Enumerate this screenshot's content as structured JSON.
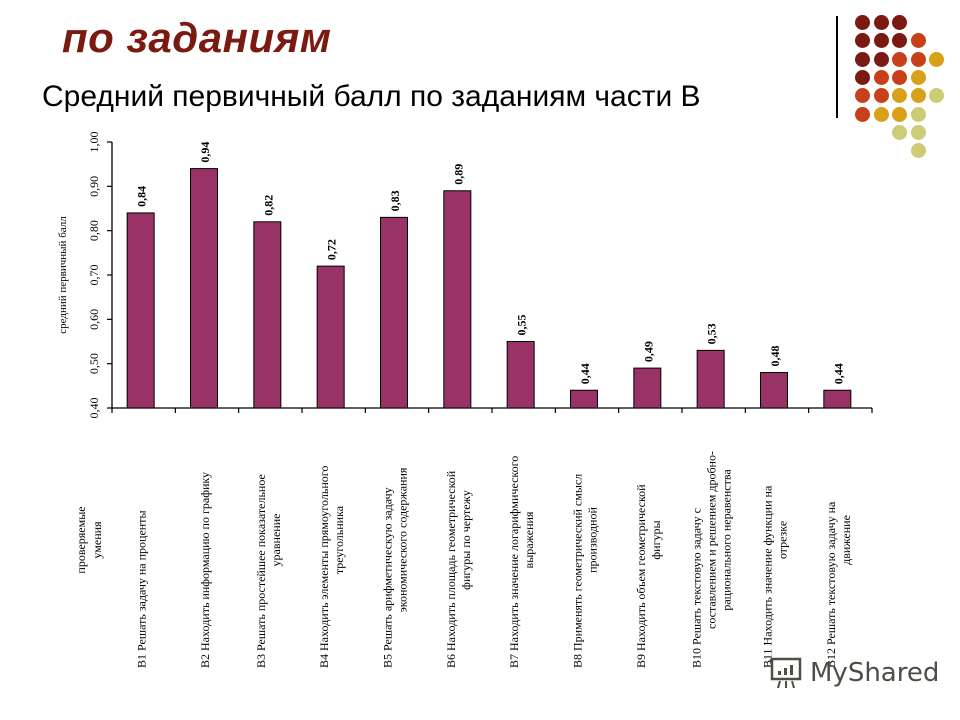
{
  "slide": {
    "title": "по заданиям",
    "subtitle": "Средний первичный балл по заданиям части В"
  },
  "decoration": {
    "dot_colors": [
      "#7b1a12",
      "#c8401a",
      "#d9a01a",
      "#cccc77"
    ],
    "dots": [
      {
        "row": 0,
        "col": 0,
        "c": 0
      },
      {
        "row": 0,
        "col": 1,
        "c": 0
      },
      {
        "row": 0,
        "col": 2,
        "c": 0
      },
      {
        "row": 1,
        "col": 0,
        "c": 0
      },
      {
        "row": 1,
        "col": 1,
        "c": 0
      },
      {
        "row": 1,
        "col": 2,
        "c": 0
      },
      {
        "row": 1,
        "col": 3,
        "c": 1
      },
      {
        "row": 2,
        "col": 0,
        "c": 0
      },
      {
        "row": 2,
        "col": 1,
        "c": 0
      },
      {
        "row": 2,
        "col": 2,
        "c": 1
      },
      {
        "row": 2,
        "col": 3,
        "c": 1
      },
      {
        "row": 2,
        "col": 4,
        "c": 2
      },
      {
        "row": 3,
        "col": 0,
        "c": 0
      },
      {
        "row": 3,
        "col": 1,
        "c": 1
      },
      {
        "row": 3,
        "col": 2,
        "c": 1
      },
      {
        "row": 3,
        "col": 3,
        "c": 2
      },
      {
        "row": 4,
        "col": 0,
        "c": 1
      },
      {
        "row": 4,
        "col": 1,
        "c": 1
      },
      {
        "row": 4,
        "col": 2,
        "c": 2
      },
      {
        "row": 4,
        "col": 3,
        "c": 2
      },
      {
        "row": 4,
        "col": 4,
        "c": 3
      },
      {
        "row": 5,
        "col": 0,
        "c": 1
      },
      {
        "row": 5,
        "col": 1,
        "c": 2
      },
      {
        "row": 5,
        "col": 2,
        "c": 2
      },
      {
        "row": 5,
        "col": 3,
        "c": 3
      },
      {
        "row": 6,
        "col": 2,
        "c": 3
      },
      {
        "row": 6,
        "col": 3,
        "c": 3
      },
      {
        "row": 7,
        "col": 3,
        "c": 3
      }
    ]
  },
  "watermark": {
    "text": "MyShared"
  },
  "chart_data": {
    "type": "bar",
    "title": "Средний первичный балл по заданиям части В",
    "ylabel": "средний первичный балл",
    "xlabel": "проверяемые умения",
    "ylim": [
      0.4,
      1.0
    ],
    "yticks": [
      "0,40",
      "0,50",
      "0,60",
      "0,70",
      "0,80",
      "0,90",
      "1,00"
    ],
    "bar_color": "#993366",
    "categories": [
      [
        "В1 Решать задачу на проценты"
      ],
      [
        "В2 Находить информацию по графику"
      ],
      [
        "В3 Решать простейшее показательное",
        "уравнение"
      ],
      [
        "В4 Находить элементы прямоугольного",
        "треугольника"
      ],
      [
        "В5 Решать арифметическую задачу",
        "экономического содержания"
      ],
      [
        "В6 Находить площадь геометрической",
        "фигуры по чертежу"
      ],
      [
        "В7 Находить значение логарифмического",
        "выражения"
      ],
      [
        "В8 Применять геометрический смысл",
        "производной"
      ],
      [
        "В9 Находить объем геометрической",
        "фигуры"
      ],
      [
        "В10 Решать текстовую задачу с",
        "составлением и решением дробно-",
        "рационального неравенства"
      ],
      [
        "В11 Находить значение функции на",
        "отрезке"
      ],
      [
        "В12 Решать текстовую задачу на",
        "движение"
      ]
    ],
    "values": [
      0.84,
      0.94,
      0.82,
      0.72,
      0.83,
      0.89,
      0.55,
      0.44,
      0.49,
      0.53,
      0.48,
      0.44
    ],
    "value_labels": [
      "0,84",
      "0,94",
      "0,82",
      "0,72",
      "0,83",
      "0,89",
      "0,55",
      "0,44",
      "0,49",
      "0,53",
      "0,48",
      "0,44"
    ],
    "grid": false,
    "legend": null
  }
}
